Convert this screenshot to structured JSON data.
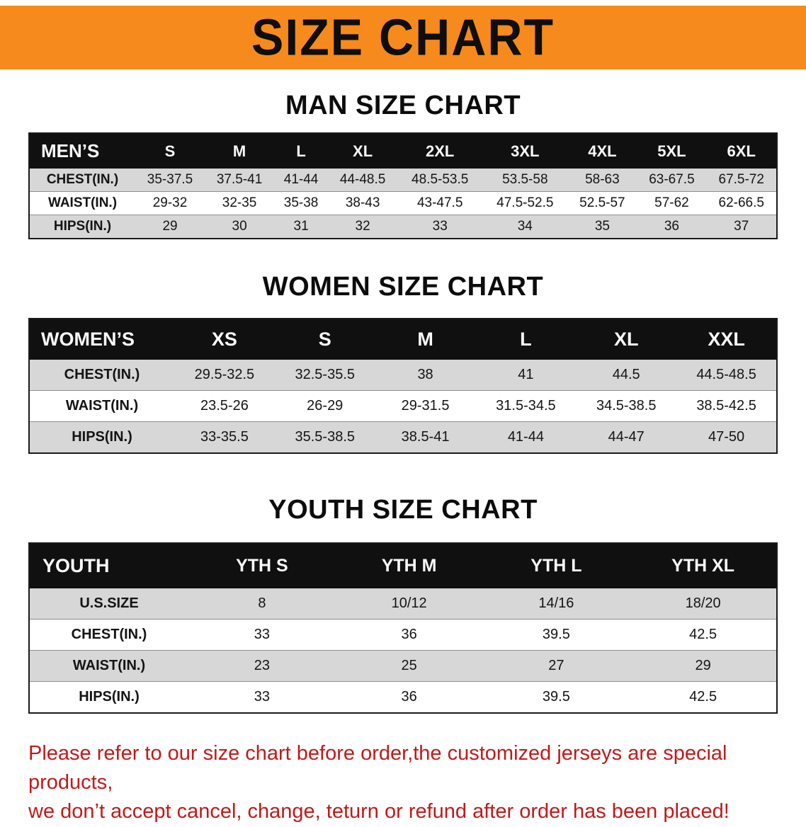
{
  "banner": {
    "title": "SIZE CHART",
    "background_color": "#f68a1c"
  },
  "sections": [
    {
      "key": "men",
      "heading": "MAN SIZE CHART",
      "table": {
        "header": [
          "MEN’S",
          "S",
          "M",
          "L",
          "XL",
          "2XL",
          "3XL",
          "4XL",
          "5XL",
          "6XL"
        ],
        "rows": [
          {
            "label": "CHEST(IN.)",
            "values": [
              "35-37.5",
              "37.5-41",
              "41-44",
              "44-48.5",
              "48.5-53.5",
              "53.5-58",
              "58-63",
              "63-67.5",
              "67.5-72"
            ]
          },
          {
            "label": "WAIST(IN.)",
            "values": [
              "29-32",
              "32-35",
              "35-38",
              "38-43",
              "43-47.5",
              "47.5-52.5",
              "52.5-57",
              "57-62",
              "62-66.5"
            ]
          },
          {
            "label": "HIPS(IN.)",
            "values": [
              "29",
              "30",
              "31",
              "32",
              "33",
              "34",
              "35",
              "36",
              "37"
            ]
          }
        ]
      }
    },
    {
      "key": "women",
      "heading": "WOMEN SIZE CHART",
      "table": {
        "header": [
          "WOMEN’S",
          "XS",
          "S",
          "M",
          "L",
          "XL",
          "XXL"
        ],
        "rows": [
          {
            "label": "CHEST(IN.)",
            "values": [
              "29.5-32.5",
              "32.5-35.5",
              "38",
              "41",
              "44.5",
              "44.5-48.5"
            ]
          },
          {
            "label": "WAIST(IN.)",
            "values": [
              "23.5-26",
              "26-29",
              "29-31.5",
              "31.5-34.5",
              "34.5-38.5",
              "38.5-42.5"
            ]
          },
          {
            "label": "HIPS(IN.)",
            "values": [
              "33-35.5",
              "35.5-38.5",
              "38.5-41",
              "41-44",
              "44-47",
              "47-50"
            ]
          }
        ]
      }
    },
    {
      "key": "youth",
      "heading": "YOUTH SIZE CHART",
      "table": {
        "header": [
          "YOUTH",
          "YTH S",
          "YTH M",
          "YTH L",
          "YTH XL"
        ],
        "rows": [
          {
            "label": "U.S.SIZE",
            "values": [
              "8",
              "10/12",
              "14/16",
              "18/20"
            ]
          },
          {
            "label": "CHEST(IN.)",
            "values": [
              "33",
              "36",
              "39.5",
              "42.5"
            ]
          },
          {
            "label": "WAIST(IN.)",
            "values": [
              "23",
              "25",
              "27",
              "29"
            ]
          },
          {
            "label": "HIPS(IN.)",
            "values": [
              "33",
              "36",
              "39.5",
              "42.5"
            ]
          }
        ]
      }
    }
  ],
  "footer": {
    "line1": "Please refer to our size chart before order,the customized jerseys are special products,",
    "line2": "we don’t accept cancel, change, teturn or refund after order has been placed!",
    "text_color": "#c01a1a"
  }
}
